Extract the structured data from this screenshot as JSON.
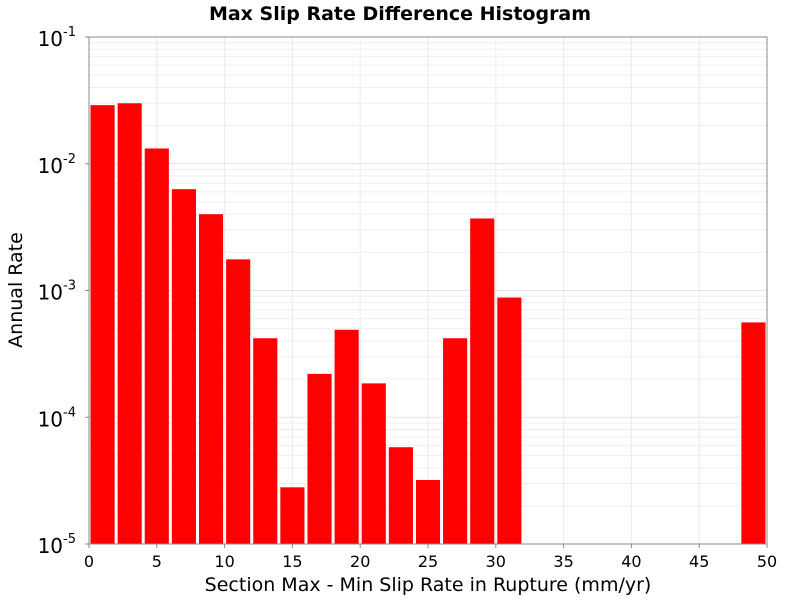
{
  "chart_data": {
    "type": "bar",
    "title": "Max Slip Rate Difference Histogram",
    "xlabel": "Section Max - Min Slip Rate in Rupture (mm/yr)",
    "ylabel": "Annual Rate",
    "xlim": [
      0,
      50
    ],
    "ylim": [
      1e-05,
      0.1
    ],
    "yscale": "log",
    "grid": true,
    "bar_color": "#ff0000",
    "bar_width": 2,
    "x_ticks": [
      "0",
      "5",
      "10",
      "15",
      "20",
      "25",
      "30",
      "35",
      "40",
      "45",
      "50"
    ],
    "y_ticks": [
      {
        "base": "10",
        "exp": "-5"
      },
      {
        "base": "10",
        "exp": "-4"
      },
      {
        "base": "10",
        "exp": "-3"
      },
      {
        "base": "10",
        "exp": "-2"
      },
      {
        "base": "10",
        "exp": "-1"
      }
    ],
    "bars": [
      {
        "x": 1,
        "y": 0.029
      },
      {
        "x": 3,
        "y": 0.03
      },
      {
        "x": 5,
        "y": 0.0132
      },
      {
        "x": 7,
        "y": 0.0063
      },
      {
        "x": 9,
        "y": 0.004
      },
      {
        "x": 11,
        "y": 0.00176
      },
      {
        "x": 13,
        "y": 0.00042
      },
      {
        "x": 15,
        "y": 2.8e-05
      },
      {
        "x": 17,
        "y": 0.00022
      },
      {
        "x": 19,
        "y": 0.00049
      },
      {
        "x": 21,
        "y": 0.000185
      },
      {
        "x": 23,
        "y": 5.8e-05
      },
      {
        "x": 25,
        "y": 3.2e-05
      },
      {
        "x": 27,
        "y": 0.00042
      },
      {
        "x": 29,
        "y": 0.0037
      },
      {
        "x": 31,
        "y": 0.00088
      },
      {
        "x": 49,
        "y": 0.00056
      }
    ]
  }
}
